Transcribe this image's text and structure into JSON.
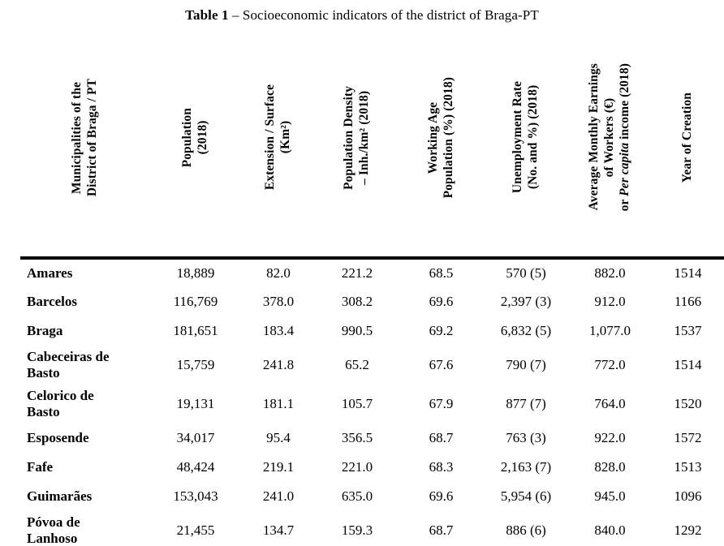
{
  "caption": {
    "label": "Table 1",
    "text": " – Socioeconomic indicators of the district of Braga-PT"
  },
  "table": {
    "columns": [
      {
        "id": "municipality",
        "header": "Municipalities of the\nDistrict of Braga / PT"
      },
      {
        "id": "population",
        "header": "Population\n(2018)"
      },
      {
        "id": "extension",
        "header": "Extension / Surface\n(Km²)"
      },
      {
        "id": "density",
        "header": "Population Density\n– Inh./km² (2018)"
      },
      {
        "id": "working_age",
        "header": "Working Age\nPopulation (%) (2018)"
      },
      {
        "id": "unemployment",
        "header": "Unemployment Rate\n(No. and %) (2018)"
      },
      {
        "id": "earnings",
        "header": "Average Monthly Earnings\nof Workers (€)\nor *Per capita* income (2018)"
      },
      {
        "id": "year",
        "header": "Year of Creation"
      }
    ],
    "rows": [
      {
        "municipality": "Amares",
        "population": "18,889",
        "extension": "82.0",
        "density": "221.2",
        "working_age": "68.5",
        "unemployment": "570 (5)",
        "earnings": "882.0",
        "year": "1514"
      },
      {
        "municipality": "Barcelos",
        "population": "116,769",
        "extension": "378.0",
        "density": "308.2",
        "working_age": "69.6",
        "unemployment": "2,397 (3)",
        "earnings": "912.0",
        "year": "1166"
      },
      {
        "municipality": "Braga",
        "population": "181,651",
        "extension": "183.4",
        "density": "990.5",
        "working_age": "69.2",
        "unemployment": "6,832 (5)",
        "earnings": "1,077.0",
        "year": "1537"
      },
      {
        "municipality": "Cabeceiras de\nBasto",
        "population": "15,759",
        "extension": "241.8",
        "density": "65.2",
        "working_age": "67.6",
        "unemployment": "790 (7)",
        "earnings": "772.0",
        "year": "1514"
      },
      {
        "municipality": "Celorico de\nBasto",
        "population": "19,131",
        "extension": "181.1",
        "density": "105.7",
        "working_age": "67.9",
        "unemployment": "877 (7)",
        "earnings": "764.0",
        "year": "1520"
      },
      {
        "municipality": "Esposende",
        "population": "34,017",
        "extension": "95.4",
        "density": "356.5",
        "working_age": "68.7",
        "unemployment": "763 (3)",
        "earnings": "922.0",
        "year": "1572"
      },
      {
        "municipality": "Fafe",
        "population": "48,424",
        "extension": "219.1",
        "density": "221.0",
        "working_age": "68.3",
        "unemployment": "2,163 (7)",
        "earnings": "828.0",
        "year": "1513"
      },
      {
        "municipality": "Guimarães",
        "population": "153,043",
        "extension": "241.0",
        "density": "635.0",
        "working_age": "69.6",
        "unemployment": "5,954 (6)",
        "earnings": "945.0",
        "year": "1096"
      },
      {
        "municipality": "Póvoa de\nLanhoso",
        "population": "21,455",
        "extension": "134.7",
        "density": "159.3",
        "working_age": "68.7",
        "unemployment": "886 (6)",
        "earnings": "840.0",
        "year": "1292"
      }
    ]
  }
}
